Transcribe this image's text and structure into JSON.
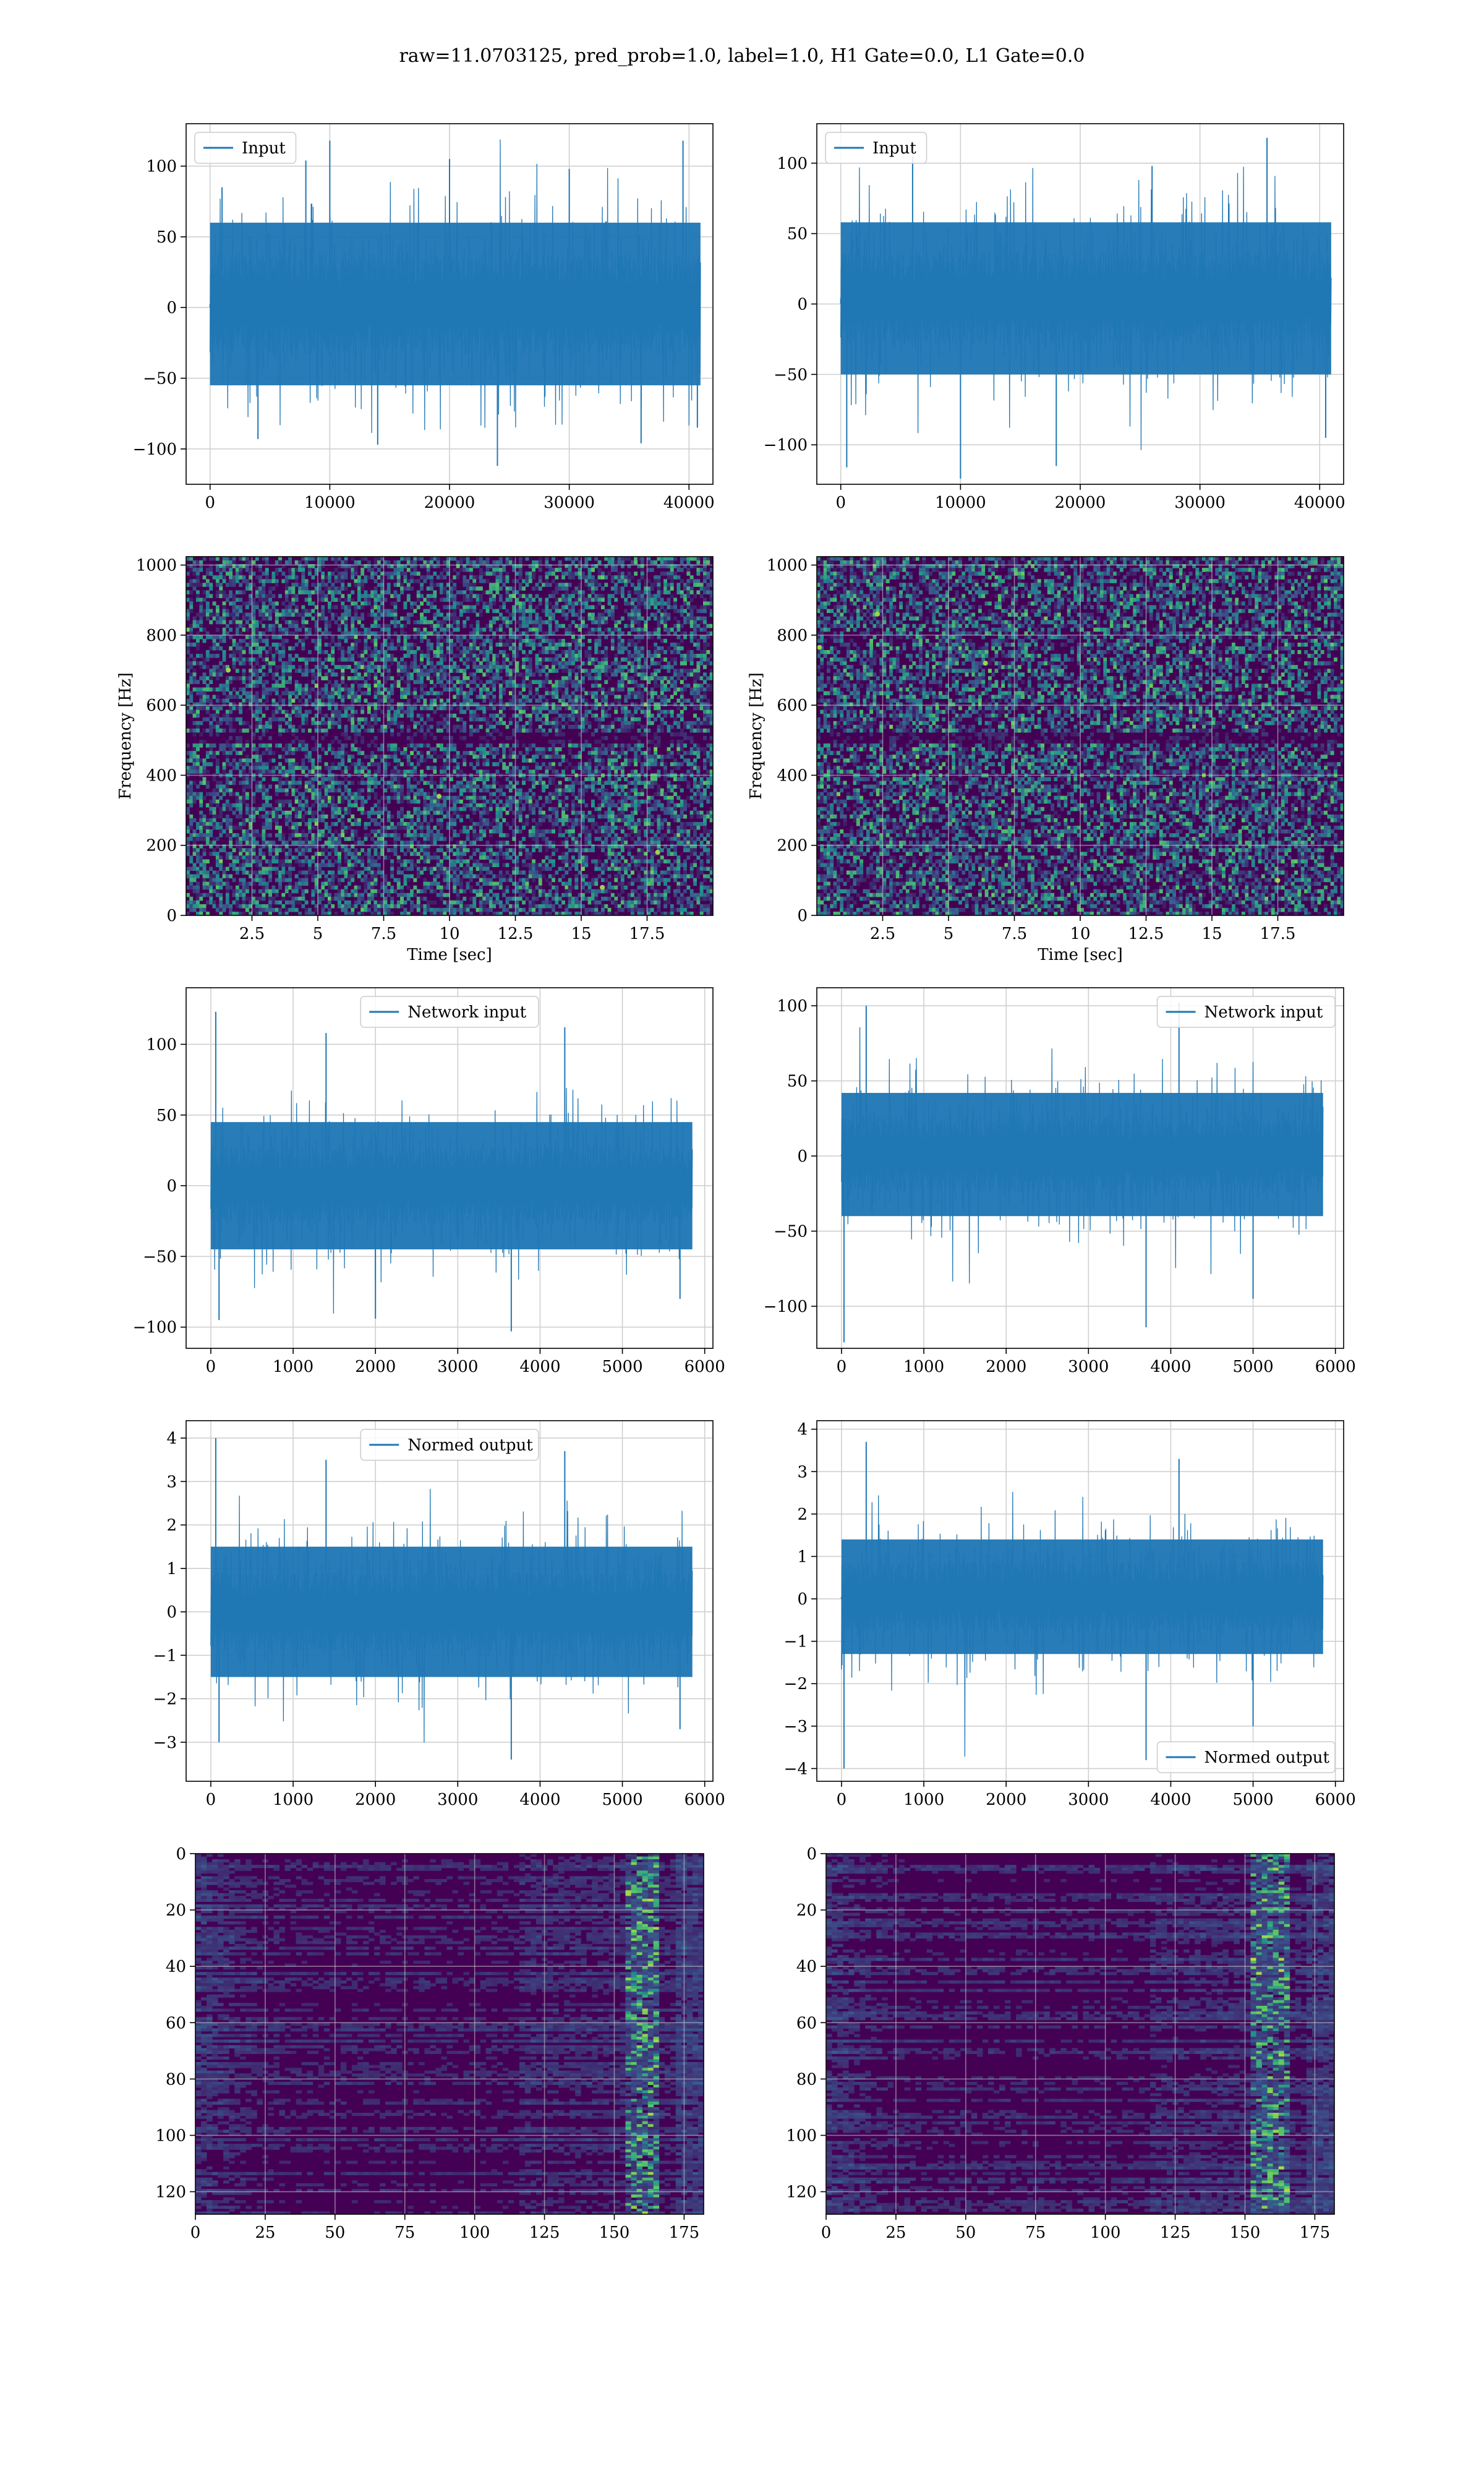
{
  "figure": {
    "suptitle": "raw=11.0703125, pred_prob=1.0, label=1.0, H1 Gate=0.0, L1 Gate=0.0"
  },
  "colors": {
    "line": "#1f77b4",
    "grid": "#cfcfcf",
    "viridis_dark": "#440154",
    "viridis_mid": "#21918c",
    "viridis_bright": "#5ec962",
    "viridis_top": "#fde725"
  },
  "chart_data": [
    {
      "id": "input-h1",
      "type": "line",
      "legend": [
        "Input"
      ],
      "legend_loc": "upper left",
      "xlim": [
        -2000,
        42000
      ],
      "ylim": [
        -125,
        130
      ],
      "xticks": [
        0,
        10000,
        20000,
        30000,
        40000
      ],
      "yticks": [
        -100,
        -50,
        0,
        50,
        100
      ],
      "xlabel": "",
      "ylabel": "",
      "series": [
        {
          "name": "Input",
          "x_range": [
            0,
            40960
          ],
          "samples": [
            {
              "x": 0,
              "y": 0
            },
            {
              "x": 1000,
              "y": 85
            },
            {
              "x": 4000,
              "y": -93
            },
            {
              "x": 8000,
              "y": 104
            },
            {
              "x": 10000,
              "y": 118
            },
            {
              "x": 14000,
              "y": -97
            },
            {
              "x": 20000,
              "y": 105
            },
            {
              "x": 24000,
              "y": -112
            },
            {
              "x": 30000,
              "y": 98
            },
            {
              "x": 36000,
              "y": -96
            },
            {
              "x": 39500,
              "y": 118
            },
            {
              "x": 40700,
              "y": -85
            }
          ],
          "typical_envelope": [
            -55,
            60
          ]
        }
      ],
      "grid": true
    },
    {
      "id": "input-l1",
      "type": "line",
      "legend": [
        "Input"
      ],
      "legend_loc": "upper left",
      "xlim": [
        -2000,
        42000
      ],
      "ylim": [
        -128,
        128
      ],
      "xticks": [
        0,
        10000,
        20000,
        30000,
        40000
      ],
      "yticks": [
        -100,
        -50,
        0,
        50,
        100
      ],
      "xlabel": "",
      "ylabel": "",
      "series": [
        {
          "name": "Input",
          "x_range": [
            0,
            40960
          ],
          "samples": [
            {
              "x": 0,
              "y": 0
            },
            {
              "x": 500,
              "y": -116
            },
            {
              "x": 6000,
              "y": 105
            },
            {
              "x": 10000,
              "y": -124
            },
            {
              "x": 18000,
              "y": -115
            },
            {
              "x": 26000,
              "y": 98
            },
            {
              "x": 35600,
              "y": 118
            },
            {
              "x": 40500,
              "y": -95
            }
          ],
          "typical_envelope": [
            -50,
            58
          ]
        }
      ],
      "grid": true
    },
    {
      "id": "spec-h1",
      "type": "heatmap",
      "xlabel": "Time [sec]",
      "ylabel": "Frequency [Hz]",
      "xlim": [
        0,
        20
      ],
      "ylim": [
        0,
        1024
      ],
      "xticks": [
        2.5,
        5.0,
        7.5,
        10.0,
        12.5,
        15.0,
        17.5
      ],
      "yticks": [
        0,
        200,
        400,
        600,
        800,
        1000
      ],
      "colormap": "viridis",
      "hot_spots": [
        {
          "t": 15.8,
          "f": 80
        },
        {
          "t": 1.6,
          "f": 700
        },
        {
          "t": 17.9,
          "f": 180
        },
        {
          "t": 9.6,
          "f": 340
        }
      ],
      "grid": true
    },
    {
      "id": "spec-l1",
      "type": "heatmap",
      "xlabel": "Time [sec]",
      "ylabel": "Frequency [Hz]",
      "xlim": [
        0,
        20
      ],
      "ylim": [
        0,
        1024
      ],
      "xticks": [
        2.5,
        5.0,
        7.5,
        10.0,
        12.5,
        15.0,
        17.5
      ],
      "yticks": [
        0,
        200,
        400,
        600,
        800,
        1000
      ],
      "colormap": "viridis",
      "hot_spots": [
        {
          "t": 0.1,
          "f": 765
        },
        {
          "t": 2.3,
          "f": 860
        },
        {
          "t": 6.4,
          "f": 720
        },
        {
          "t": 17.5,
          "f": 100
        }
      ],
      "grid": true
    },
    {
      "id": "network-input-h1",
      "type": "line",
      "legend": [
        "Network input"
      ],
      "legend_loc": "upper center",
      "xlim": [
        -300,
        6100
      ],
      "ylim": [
        -115,
        140
      ],
      "xticks": [
        0,
        1000,
        2000,
        3000,
        4000,
        5000,
        6000
      ],
      "yticks": [
        -100,
        -50,
        0,
        50,
        100
      ],
      "xlabel": "",
      "ylabel": "",
      "series": [
        {
          "name": "Network input",
          "x_range": [
            0,
            5850
          ],
          "samples": [
            {
              "x": 0,
              "y": 0
            },
            {
              "x": 60,
              "y": 123
            },
            {
              "x": 100,
              "y": -95
            },
            {
              "x": 1400,
              "y": 108
            },
            {
              "x": 2000,
              "y": -94
            },
            {
              "x": 3650,
              "y": -103
            },
            {
              "x": 4300,
              "y": 112
            },
            {
              "x": 5700,
              "y": -80
            }
          ],
          "typical_envelope": [
            -45,
            45
          ]
        }
      ],
      "grid": true
    },
    {
      "id": "network-input-l1",
      "type": "line",
      "legend": [
        "Network input"
      ],
      "legend_loc": "upper right",
      "xlim": [
        -300,
        6100
      ],
      "ylim": [
        -128,
        112
      ],
      "xticks": [
        0,
        1000,
        2000,
        3000,
        4000,
        5000,
        6000
      ],
      "yticks": [
        -100,
        -50,
        0,
        50,
        100
      ],
      "xlabel": "",
      "ylabel": "",
      "series": [
        {
          "name": "Network input",
          "x_range": [
            0,
            5850
          ],
          "samples": [
            {
              "x": 0,
              "y": 0
            },
            {
              "x": 30,
              "y": -124
            },
            {
              "x": 300,
              "y": 100
            },
            {
              "x": 3700,
              "y": -114
            },
            {
              "x": 4100,
              "y": 102
            },
            {
              "x": 5000,
              "y": -95
            }
          ],
          "typical_envelope": [
            -40,
            42
          ]
        }
      ],
      "grid": true
    },
    {
      "id": "normed-output-h1",
      "type": "line",
      "legend": [
        "Normed output"
      ],
      "legend_loc": "upper center",
      "xlim": [
        -300,
        6100
      ],
      "ylim": [
        -3.9,
        4.4
      ],
      "xticks": [
        0,
        1000,
        2000,
        3000,
        4000,
        5000,
        6000
      ],
      "yticks": [
        -3,
        -2,
        -1,
        0,
        1,
        2,
        3,
        4
      ],
      "xlabel": "",
      "ylabel": "",
      "series": [
        {
          "name": "Normed output",
          "x_range": [
            0,
            5850
          ],
          "samples": [
            {
              "x": 0,
              "y": 0
            },
            {
              "x": 60,
              "y": 4.0
            },
            {
              "x": 100,
              "y": -3.0
            },
            {
              "x": 1400,
              "y": 3.5
            },
            {
              "x": 3650,
              "y": -3.4
            },
            {
              "x": 4300,
              "y": 3.7
            },
            {
              "x": 5700,
              "y": -2.7
            }
          ],
          "typical_envelope": [
            -1.5,
            1.5
          ]
        }
      ],
      "grid": true
    },
    {
      "id": "normed-output-l1",
      "type": "line",
      "legend": [
        "Normed output"
      ],
      "legend_loc": "lower right",
      "xlim": [
        -300,
        6100
      ],
      "ylim": [
        -4.3,
        4.2
      ],
      "xticks": [
        0,
        1000,
        2000,
        3000,
        4000,
        5000,
        6000
      ],
      "yticks": [
        -4,
        -3,
        -2,
        -1,
        0,
        1,
        2,
        3,
        4
      ],
      "xlabel": "",
      "ylabel": "",
      "series": [
        {
          "name": "Normed output",
          "x_range": [
            0,
            5850
          ],
          "samples": [
            {
              "x": 0,
              "y": 0
            },
            {
              "x": 30,
              "y": -4.0
            },
            {
              "x": 300,
              "y": 3.7
            },
            {
              "x": 3700,
              "y": -3.8
            },
            {
              "x": 4100,
              "y": 3.3
            },
            {
              "x": 5000,
              "y": -3.0
            }
          ],
          "typical_envelope": [
            -1.3,
            1.4
          ]
        }
      ],
      "grid": true
    },
    {
      "id": "feature-map-h1",
      "type": "heatmap",
      "xlabel": "",
      "ylabel": "",
      "xlim": [
        0,
        182
      ],
      "ylim": [
        128,
        0
      ],
      "xticks": [
        0,
        25,
        50,
        75,
        100,
        125,
        150,
        175
      ],
      "yticks": [
        0,
        20,
        40,
        60,
        80,
        100,
        120
      ],
      "colormap": "viridis",
      "bright_band_columns": [
        153,
        165
      ],
      "grid": true
    },
    {
      "id": "feature-map-l1",
      "type": "heatmap",
      "xlabel": "",
      "ylabel": "",
      "xlim": [
        0,
        182
      ],
      "ylim": [
        128,
        0
      ],
      "xticks": [
        0,
        25,
        50,
        75,
        100,
        125,
        150,
        175
      ],
      "yticks": [
        0,
        20,
        40,
        60,
        80,
        100,
        120
      ],
      "colormap": "viridis",
      "bright_band_columns": [
        152,
        165
      ],
      "grid": true
    }
  ]
}
